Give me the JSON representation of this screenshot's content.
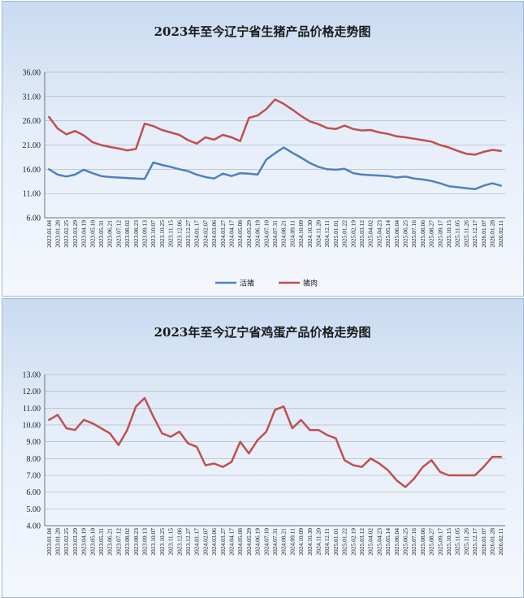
{
  "chart_data": [
    {
      "type": "line",
      "title": "2023年至今辽宁省生猪产品价格走势图",
      "ylim": [
        6,
        36
      ],
      "yticks": [
        "36.00",
        "31.00",
        "26.00",
        "21.00",
        "16.00",
        "11.00",
        "6.00"
      ],
      "categories": [
        "2023.01.04",
        "2023.01.28",
        "2023.02.25",
        "2023.03.29",
        "2023.04.19",
        "2023.05.10",
        "2023.05.31",
        "2023.06.21",
        "2023.07.12",
        "2023.08.02",
        "2023.08.23",
        "2023.09.13",
        "2023.10.07",
        "2023.10.25",
        "2023.11.15",
        "2023.12.06",
        "2023.12.27",
        "2024.01.17",
        "2024.02.07",
        "2024.03.06",
        "2024.03.27",
        "2024.04.17",
        "2024.05.08",
        "2024.05.29",
        "2024.06.19",
        "2024.07.10",
        "2024.07.31",
        "2024.08.21",
        "2024.09.11",
        "2024.10.09",
        "2024.10.30",
        "2024.11.20",
        "2024.12.11",
        "2025.01.01",
        "2025.01.22",
        "2025.02.19",
        "2025.03.12",
        "2025.04.02",
        "2025.04.23",
        "2025.05.14",
        "2025.06.04",
        "2025.06.25",
        "2025.07.16",
        "2025.08.06",
        "2025.08.27",
        "2025.09.17",
        "2025.10.15",
        "2025.11.05",
        "2025.11.26",
        "2025.12.17",
        "2026.01.07",
        "2026.01.28",
        "2026.02.11"
      ],
      "series": [
        {
          "name": "活猪",
          "color": "#4f81bd",
          "values": [
            16.0,
            14.9,
            14.5,
            14.9,
            15.9,
            15.2,
            14.6,
            14.4,
            14.3,
            14.2,
            14.1,
            14.0,
            17.4,
            16.9,
            16.5,
            16.0,
            15.6,
            14.9,
            14.4,
            14.1,
            15.1,
            14.6,
            15.2,
            15.1,
            14.9,
            18.0,
            19.3,
            20.5,
            19.4,
            18.4,
            17.3,
            16.5,
            16.0,
            15.9,
            16.1,
            15.2,
            14.9,
            14.8,
            14.7,
            14.6,
            14.3,
            14.5,
            14.1,
            13.9,
            13.6,
            13.1,
            12.5,
            12.3,
            12.1,
            11.9,
            12.6,
            13.1,
            12.6
          ]
        },
        {
          "name": "猪肉",
          "color": "#c0504d",
          "values": [
            26.8,
            24.4,
            23.2,
            23.9,
            23.0,
            21.6,
            21.0,
            20.6,
            20.3,
            19.9,
            20.2,
            25.4,
            24.9,
            24.1,
            23.6,
            23.1,
            22.0,
            21.3,
            22.6,
            22.1,
            23.1,
            22.6,
            21.8,
            26.6,
            27.1,
            28.4,
            30.4,
            29.5,
            28.3,
            27.0,
            25.9,
            25.3,
            24.5,
            24.3,
            25.0,
            24.3,
            24.0,
            24.1,
            23.6,
            23.3,
            22.8,
            22.6,
            22.3,
            22.0,
            21.7,
            21.0,
            20.5,
            19.8,
            19.2,
            19.0,
            19.6,
            20.0,
            19.8
          ]
        }
      ],
      "legend": "bottom"
    },
    {
      "type": "line",
      "title": "2023年至今辽宁省鸡蛋产品价格走势图",
      "ylim": [
        4,
        13
      ],
      "yticks": [
        "13.00",
        "12.00",
        "11.00",
        "10.00",
        "9.00",
        "8.00",
        "7.00",
        "6.00",
        "5.00",
        "4.00"
      ],
      "categories": [
        "2023.01.04",
        "2023.01.28",
        "2023.02.25",
        "2023.03.29",
        "2023.04.19",
        "2023.05.10",
        "2023.05.31",
        "2023.06.21",
        "2023.07.12",
        "2023.08.02",
        "2023.08.23",
        "2023.09.13",
        "2023.10.07",
        "2023.10.25",
        "2023.11.15",
        "2023.12.06",
        "2023.12.27",
        "2024.01.17",
        "2024.02.07",
        "2024.03.06",
        "2024.03.27",
        "2024.04.17",
        "2024.05.08",
        "2024.05.29",
        "2024.06.19",
        "2024.07.10",
        "2024.07.31",
        "2024.08.21",
        "2024.09.11",
        "2024.10.09",
        "2024.10.30",
        "2024.11.20",
        "2024.12.11",
        "2025.01.01",
        "2025.01.22",
        "2025.02.19",
        "2025.03.12",
        "2025.04.02",
        "2025.04.23",
        "2025.05.14",
        "2025.06.04",
        "2025.06.25",
        "2025.07.16",
        "2025.08.06",
        "2025.08.27",
        "2025.09.17",
        "2025.10.15",
        "2025.11.05",
        "2025.11.26",
        "2025.12.17",
        "2026.01.07",
        "2026.01.28",
        "2026.02.11"
      ],
      "series": [
        {
          "name": "",
          "color": "#c0504d",
          "values": [
            10.3,
            10.6,
            9.8,
            9.7,
            10.3,
            10.1,
            9.8,
            9.5,
            8.8,
            9.7,
            11.1,
            11.6,
            10.5,
            9.5,
            9.3,
            9.6,
            8.9,
            8.7,
            7.6,
            7.7,
            7.5,
            7.8,
            9.0,
            8.3,
            9.1,
            9.6,
            10.9,
            11.1,
            9.8,
            10.3,
            9.7,
            9.7,
            9.4,
            9.2,
            7.9,
            7.6,
            7.5,
            8.0,
            7.7,
            7.3,
            6.7,
            6.3,
            6.8,
            7.5,
            7.9,
            7.2,
            7.0,
            7.0,
            7.0,
            7.0,
            7.5,
            8.1,
            8.1
          ]
        }
      ],
      "legend": "none"
    }
  ]
}
